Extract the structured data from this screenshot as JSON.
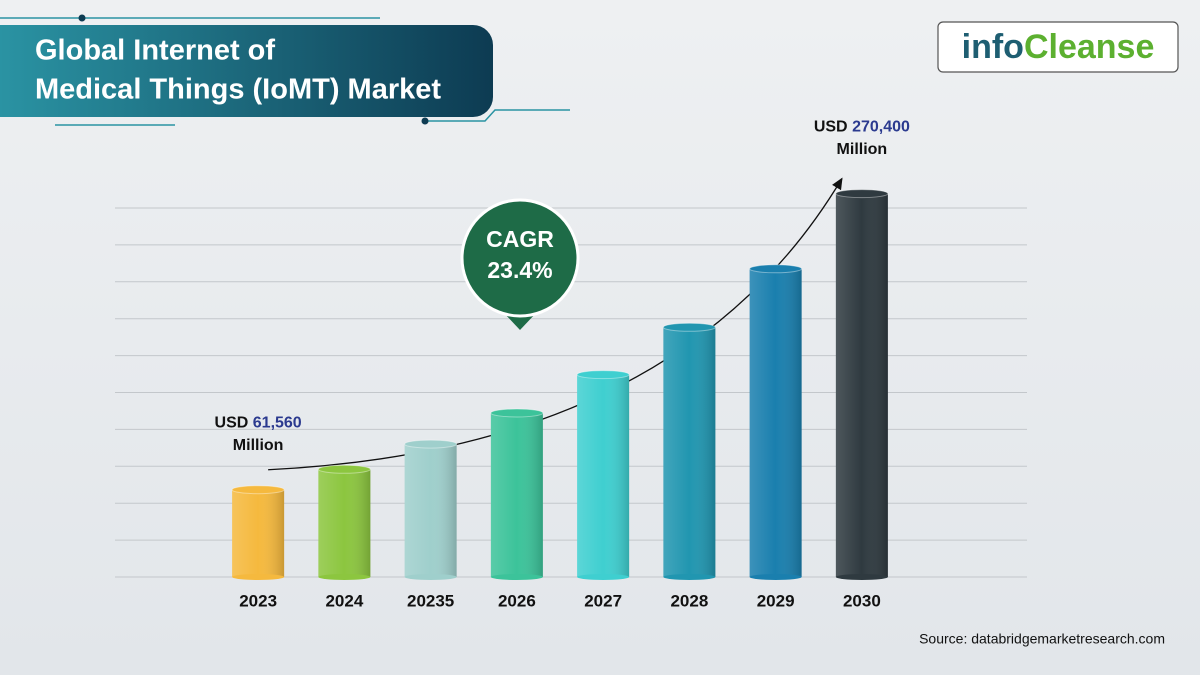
{
  "chart_data": {
    "type": "bar",
    "title": [
      "Global Internet of",
      "Medical Things (IoMT) Market"
    ],
    "categories": [
      "2023",
      "2024",
      "20235",
      "2026",
      "2027",
      "2028",
      "2029",
      "2030"
    ],
    "values": [
      61560,
      75965,
      93741,
      115676,
      142744,
      176146,
      217364,
      270400
    ],
    "value_labels": [
      "61,560",
      null,
      null,
      null,
      null,
      null,
      null,
      "270,400"
    ],
    "value_label_prefix": "USD",
    "value_label_suffix": "Million",
    "colors": [
      "#f5b93e",
      "#8cc63f",
      "#9fcfcc",
      "#3cc39a",
      "#3fcfd0",
      "#2196b0",
      "#1a7fae",
      "#2f3a40"
    ],
    "ylim": [
      0,
      280000
    ],
    "cagr": {
      "label": "CAGR",
      "value": "23.4%"
    },
    "source": "Source: databridgemarketresearch.com",
    "logo": [
      "info",
      "Cleanse"
    ]
  }
}
